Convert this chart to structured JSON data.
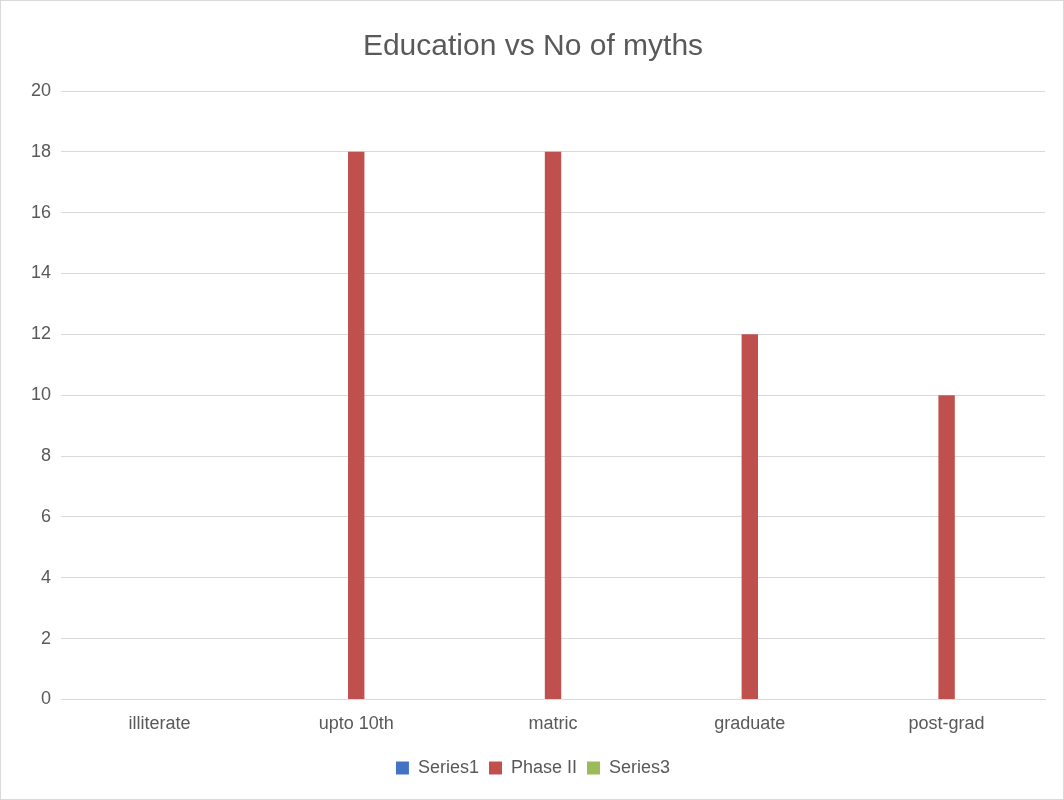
{
  "chart_data": {
    "type": "bar",
    "title": "Education vs No of myths",
    "categories": [
      "illiterate",
      "upto 10th",
      "matric",
      "graduate",
      "post-grad"
    ],
    "series": [
      {
        "name": "Series1",
        "color": "#4472c4",
        "values": [
          null,
          null,
          null,
          null,
          null
        ]
      },
      {
        "name": "Phase II",
        "color": "#c0504d",
        "values": [
          0,
          18,
          18,
          12,
          10
        ]
      },
      {
        "name": "Series3",
        "color": "#9bbb59",
        "values": [
          null,
          null,
          null,
          null,
          null
        ]
      }
    ],
    "ylim": [
      0,
      20
    ],
    "yticks": [
      0,
      2,
      4,
      6,
      8,
      10,
      12,
      14,
      16,
      18,
      20
    ],
    "grid": "y",
    "legend": "bottom"
  }
}
